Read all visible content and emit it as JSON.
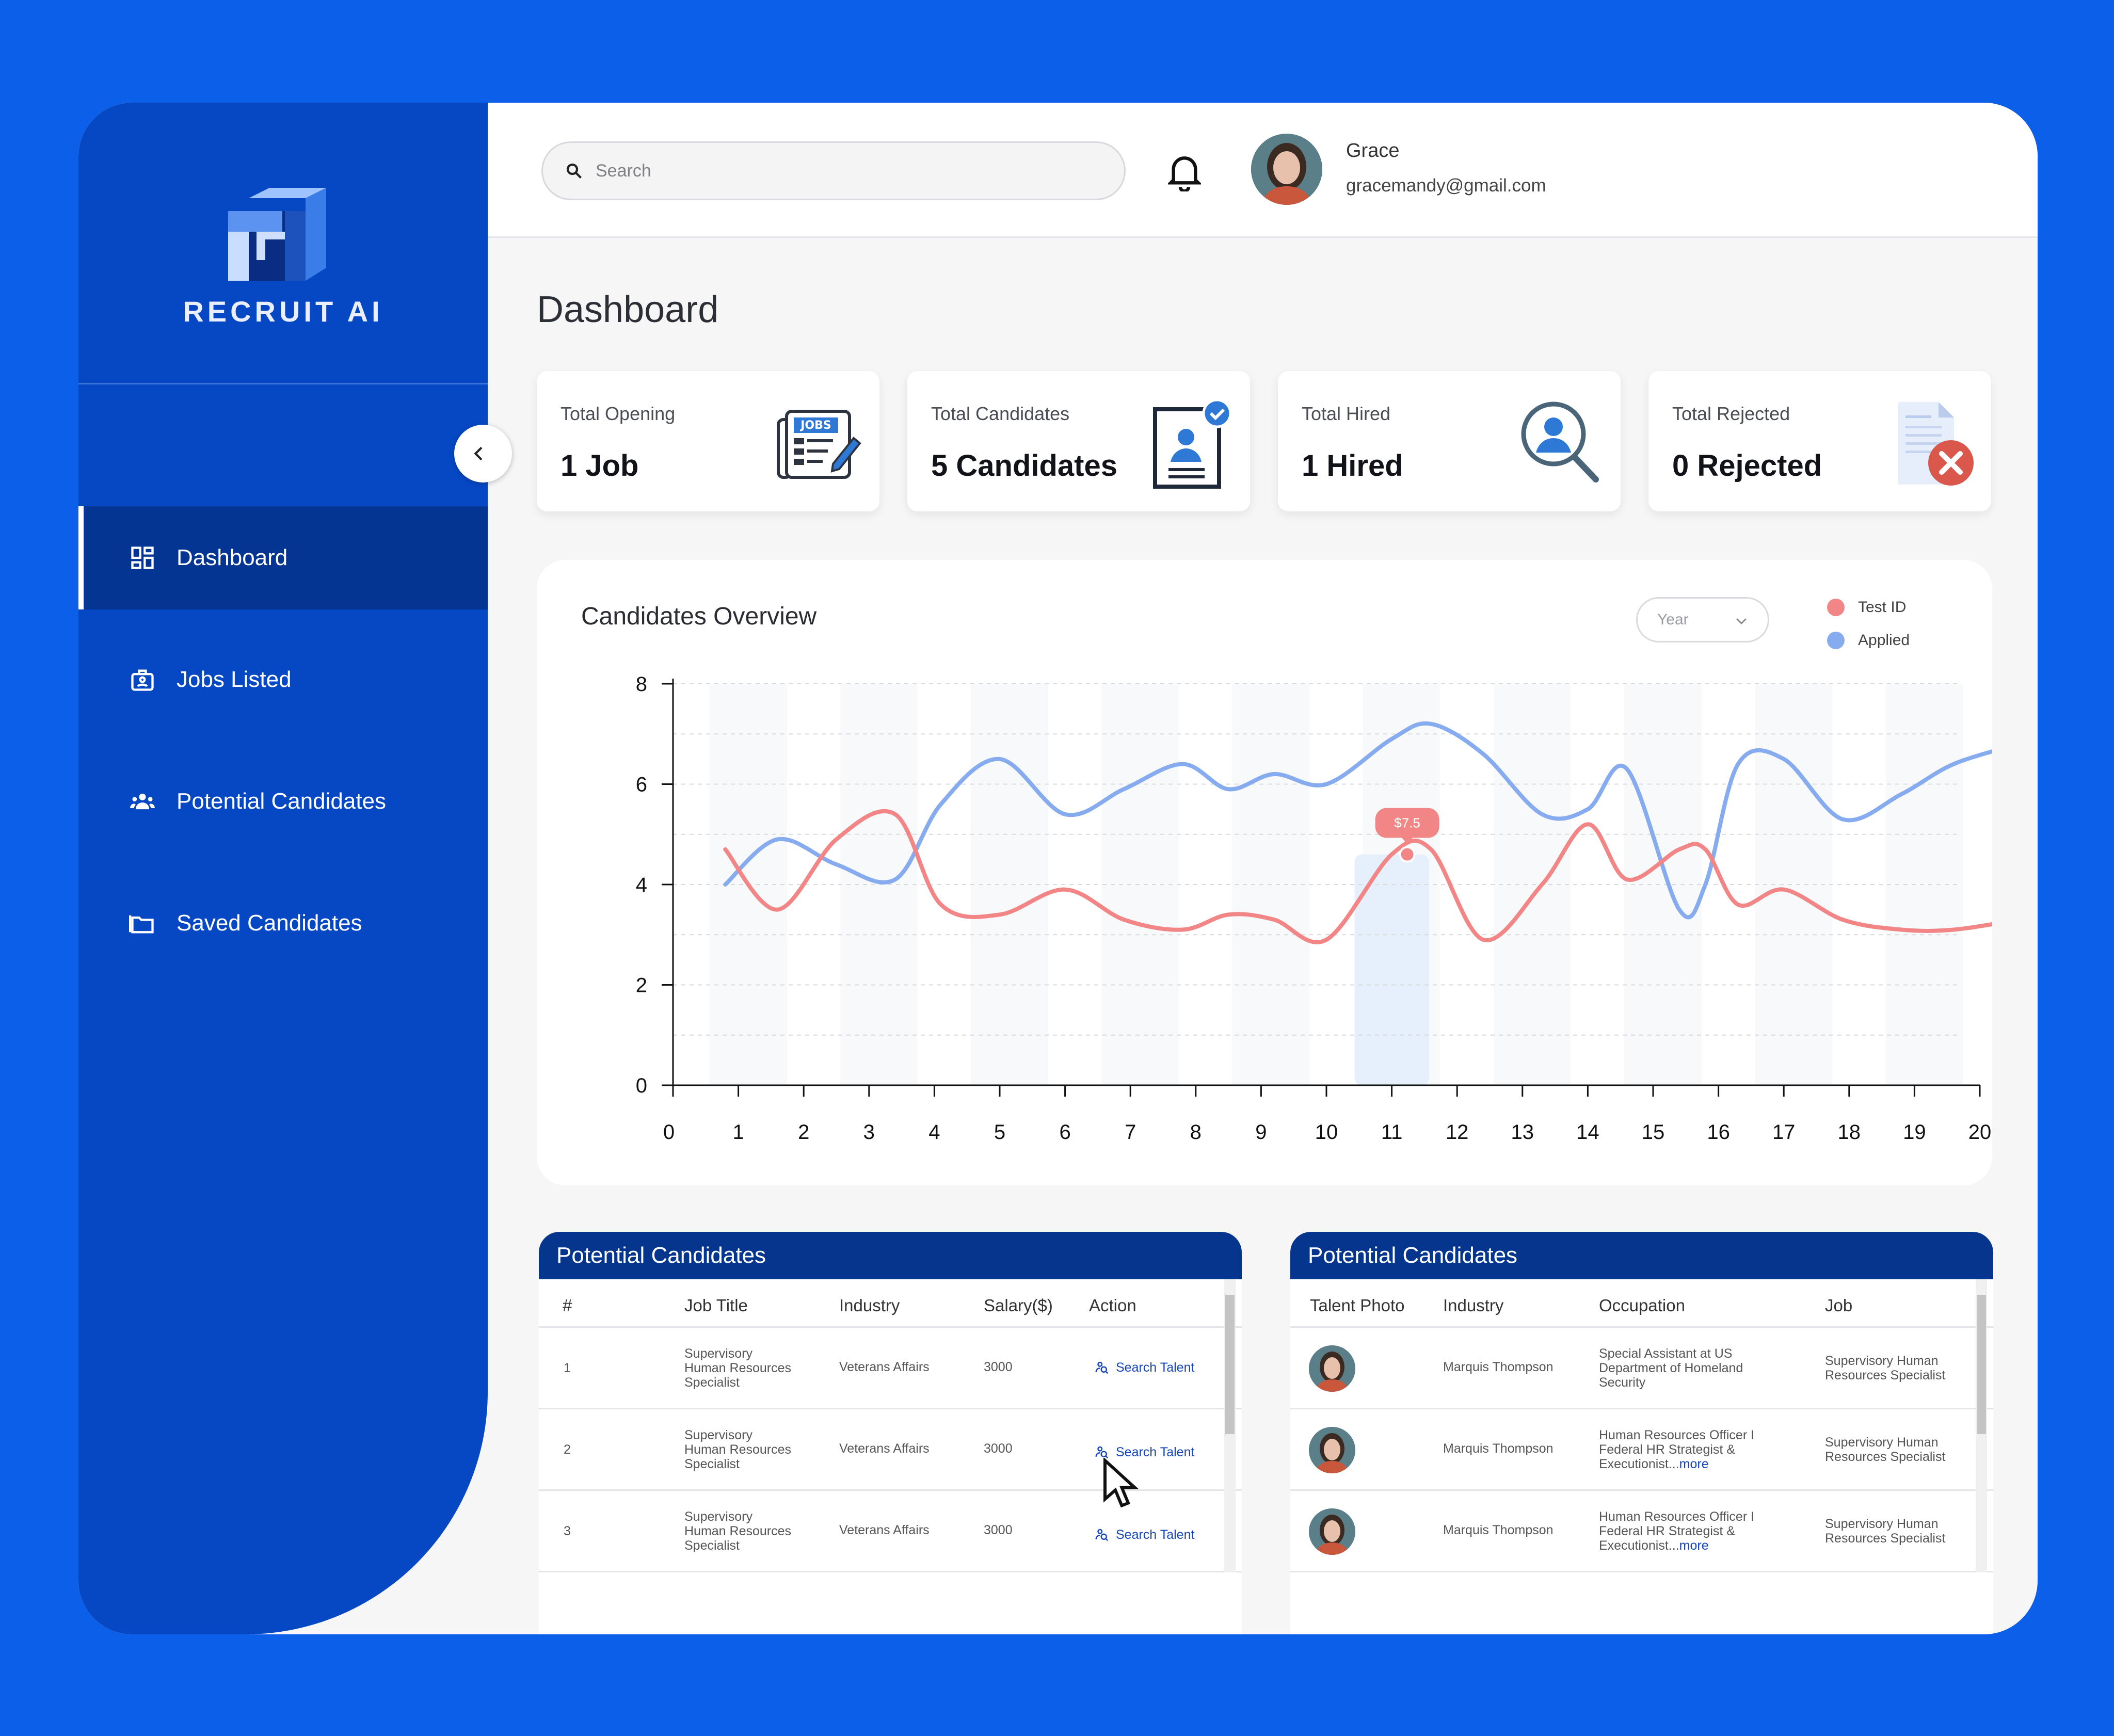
{
  "brand": {
    "name": "RECRUIT AI"
  },
  "sidebar": {
    "items": [
      {
        "label": "Dashboard",
        "icon": "dashboard-icon",
        "active": true
      },
      {
        "label": "Jobs Listed",
        "icon": "briefcase-icon",
        "active": false
      },
      {
        "label": "Potential Candidates",
        "icon": "people-icon",
        "active": false
      },
      {
        "label": "Saved Candidates",
        "icon": "folder-icon",
        "active": false
      }
    ]
  },
  "header": {
    "search_placeholder": "Search",
    "user": {
      "name": "Grace",
      "email": "gracemandy@gmail.com"
    }
  },
  "page": {
    "title": "Dashboard"
  },
  "stats": [
    {
      "label": "Total Opening",
      "value": "1 Job",
      "icon": "jobs-newspaper-icon"
    },
    {
      "label": "Total Candidates",
      "value": "5 Candidates",
      "icon": "candidate-profile-check-icon"
    },
    {
      "label": "Total Hired",
      "value": "1 Hired",
      "icon": "magnifier-user-icon"
    },
    {
      "label": "Total Rejected",
      "value": "0 Rejected",
      "icon": "document-rejected-icon"
    }
  ],
  "overview": {
    "title": "Candidates Overview",
    "filter": "Year",
    "tooltip": "$7.5",
    "legend": [
      {
        "name": "Test ID",
        "color": "#f28686"
      },
      {
        "name": "Applied",
        "color": "#86abef"
      }
    ]
  },
  "chart_data": {
    "type": "line",
    "x": [
      0.8,
      1.6,
      2.5,
      3.4,
      4.1,
      5.0,
      6.0,
      6.9,
      7.8,
      8.5,
      9.2,
      10.0,
      11.0,
      11.6,
      12.4,
      13.3,
      14.0,
      14.6,
      15.4,
      15.8,
      16.3,
      17.0,
      17.9,
      18.8,
      19.6,
      20.6
    ],
    "series": [
      {
        "name": "Applied",
        "color": "#86abef",
        "values": [
          4.0,
          4.9,
          4.4,
          4.1,
          5.6,
          6.5,
          5.4,
          5.9,
          6.4,
          5.9,
          6.2,
          6.0,
          6.9,
          7.2,
          6.6,
          5.4,
          5.5,
          6.3,
          3.5,
          4.0,
          6.4,
          6.5,
          5.3,
          5.8,
          6.4,
          6.8
        ]
      },
      {
        "name": "Test ID",
        "color": "#f28686",
        "values": [
          4.7,
          3.5,
          4.9,
          5.4,
          3.6,
          3.4,
          3.9,
          3.3,
          3.1,
          3.4,
          3.3,
          2.9,
          4.6,
          4.7,
          2.9,
          4.0,
          5.2,
          4.1,
          4.7,
          4.7,
          3.6,
          3.9,
          3.3,
          3.1,
          3.1,
          3.3
        ]
      }
    ],
    "xlim": [
      0,
      20
    ],
    "ylim": [
      0,
      8
    ],
    "x_ticks": [
      "0",
      "1",
      "2",
      "3",
      "4",
      "5",
      "6",
      "7",
      "8",
      "9",
      "10",
      "11",
      "12",
      "13",
      "14",
      "15",
      "16",
      "17",
      "18",
      "19",
      "20"
    ],
    "y_ticks": [
      "0",
      "2",
      "4",
      "6",
      "8"
    ],
    "highlight_x": 11
  },
  "table_jobs": {
    "title": "Potential Candidates",
    "columns": [
      "#",
      "Job Title",
      "Industry",
      "Salary($)",
      "Action"
    ],
    "rows": [
      {
        "num": "1",
        "title_lines": [
          "Supervisory",
          "Human Resources",
          "Specialist"
        ],
        "industry": "Veterans Affairs",
        "salary": "3000",
        "action": "Search Talent"
      },
      {
        "num": "2",
        "title_lines": [
          "Supervisory",
          "Human Resources",
          "Specialist"
        ],
        "industry": "Veterans Affairs",
        "salary": "3000",
        "action": "Search Talent"
      },
      {
        "num": "3",
        "title_lines": [
          "Supervisory",
          "Human Resources",
          "Specialist"
        ],
        "industry": "Veterans Affairs",
        "salary": "3000",
        "action": "Search Talent"
      }
    ]
  },
  "table_talent": {
    "title": "Potential Candidates",
    "columns": [
      "Talent Photo",
      "Industry",
      "Occupation",
      "Job"
    ],
    "rows": [
      {
        "industry": "Marquis Thompson",
        "occupation_lines": [
          "Special Assistant at US",
          "Department of Homeland",
          "Security"
        ],
        "more": "",
        "job_lines": [
          "Supervisory Human",
          "Resources Specialist"
        ]
      },
      {
        "industry": "Marquis Thompson",
        "occupation_lines": [
          "Human Resources Officer I",
          "Federal HR Strategist &",
          "Executionist..."
        ],
        "more": "more",
        "job_lines": [
          "Supervisory Human",
          "Resources Specialist"
        ]
      },
      {
        "industry": "Marquis Thompson",
        "occupation_lines": [
          "Human Resources Officer I",
          "Federal HR Strategist &",
          "Executionist..."
        ],
        "more": "more",
        "job_lines": [
          "Supervisory Human",
          "Resources Specialist"
        ]
      }
    ]
  }
}
